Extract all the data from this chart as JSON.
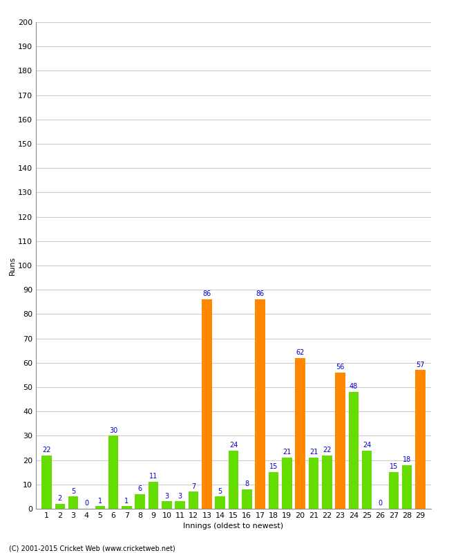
{
  "xlabel": "Innings (oldest to newest)",
  "ylabel": "Runs",
  "innings": [
    1,
    2,
    3,
    4,
    5,
    6,
    7,
    8,
    9,
    10,
    11,
    12,
    13,
    14,
    15,
    16,
    17,
    18,
    19,
    20,
    21,
    22,
    23,
    24,
    25,
    26,
    27,
    28,
    29
  ],
  "values": [
    22,
    2,
    5,
    0,
    1,
    30,
    1,
    6,
    11,
    3,
    3,
    7,
    86,
    5,
    24,
    8,
    86,
    15,
    21,
    62,
    21,
    22,
    56,
    48,
    24,
    0,
    15,
    18,
    57
  ],
  "colors": [
    "#66dd00",
    "#66dd00",
    "#66dd00",
    "#66dd00",
    "#66dd00",
    "#66dd00",
    "#66dd00",
    "#66dd00",
    "#66dd00",
    "#66dd00",
    "#66dd00",
    "#66dd00",
    "#ff8800",
    "#66dd00",
    "#66dd00",
    "#66dd00",
    "#ff8800",
    "#66dd00",
    "#66dd00",
    "#ff8800",
    "#66dd00",
    "#66dd00",
    "#ff8800",
    "#66dd00",
    "#66dd00",
    "#ff8800",
    "#66dd00",
    "#66dd00",
    "#ff8800"
  ],
  "ylim": [
    0,
    200
  ],
  "yticks": [
    0,
    10,
    20,
    30,
    40,
    50,
    60,
    70,
    80,
    90,
    100,
    110,
    120,
    130,
    140,
    150,
    160,
    170,
    180,
    190,
    200
  ],
  "label_color": "#0000cc",
  "label_fontsize": 7,
  "axis_fontsize": 8,
  "background_color": "#ffffff",
  "grid_color": "#cccccc",
  "footer": "(C) 2001-2015 Cricket Web (www.cricketweb.net)"
}
